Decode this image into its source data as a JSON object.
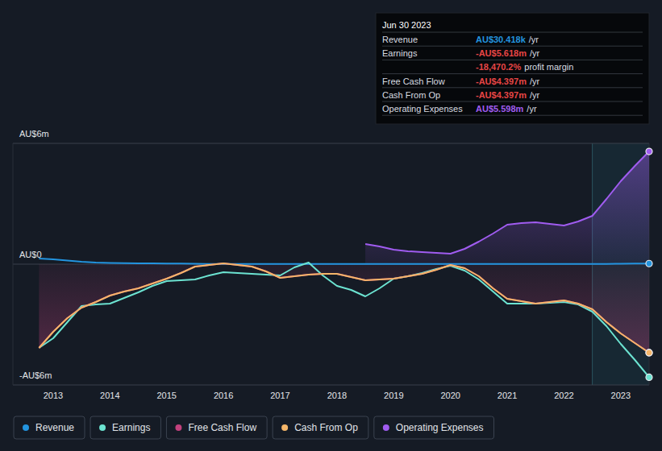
{
  "chart_data": {
    "type": "line",
    "x": [
      2012.75,
      2013,
      2013.25,
      2013.5,
      2013.75,
      2014,
      2014.25,
      2014.5,
      2014.75,
      2015,
      2015.25,
      2015.5,
      2015.75,
      2016,
      2016.25,
      2016.5,
      2016.75,
      2017,
      2017.25,
      2017.5,
      2017.75,
      2018,
      2018.25,
      2018.5,
      2018.75,
      2019,
      2019.25,
      2019.5,
      2019.75,
      2020,
      2020.25,
      2020.5,
      2020.75,
      2021,
      2021.25,
      2021.5,
      2021.75,
      2022,
      2022.25,
      2022.5,
      2022.75,
      2023,
      2023.25,
      2023.5
    ],
    "xlim": [
      2012.29,
      2023.5
    ],
    "xticks": [
      2013,
      2014,
      2015,
      2016,
      2017,
      2018,
      2019,
      2020,
      2021,
      2022,
      2023
    ],
    "ylim": [
      -6,
      6
    ],
    "yticks": [
      {
        "value": -6,
        "label": "-AU$6m"
      },
      {
        "value": 0,
        "label": "AU$0"
      },
      {
        "value": 6,
        "label": "AU$6m"
      }
    ],
    "grid": true,
    "legend": "bottom-left",
    "marker": "circle",
    "series": [
      {
        "name": "Revenue",
        "color": "#2394df",
        "type": "line",
        "values": [
          0.28,
          0.24,
          0.18,
          0.12,
          0.08,
          0.06,
          0.05,
          0.04,
          0.04,
          0.03,
          0.03,
          0.02,
          0.01,
          0.01,
          0.01,
          0.01,
          0.01,
          0.01,
          0.01,
          0.01,
          0.01,
          0.01,
          0.01,
          0.01,
          0.01,
          0.01,
          0.01,
          0.01,
          0.01,
          0.01,
          0.01,
          0.01,
          0.01,
          0.01,
          0.01,
          0.01,
          0.01,
          0.01,
          0.01,
          0.01,
          0.01,
          0.02,
          0.03,
          0.030418
        ]
      },
      {
        "name": "Earnings",
        "color": "#6ce3d1",
        "type": "line",
        "values": [
          -4.16,
          -3.68,
          -2.88,
          -2.08,
          -2.0,
          -1.96,
          -1.68,
          -1.4,
          -1.08,
          -0.84,
          -0.8,
          -0.76,
          -0.56,
          -0.4,
          -0.44,
          -0.48,
          -0.52,
          -0.56,
          -0.16,
          0.08,
          -0.56,
          -1.08,
          -1.28,
          -1.6,
          -1.2,
          -0.72,
          -0.6,
          -0.44,
          -0.24,
          -0.08,
          -0.32,
          -0.76,
          -1.36,
          -1.96,
          -1.96,
          -1.96,
          -1.92,
          -1.88,
          -2.0,
          -2.36,
          -3.08,
          -3.96,
          -4.76,
          -5.618
        ]
      },
      {
        "name": "Free Cash Flow",
        "color": "#c2417d",
        "type": "area",
        "values": [
          -4.16,
          -3.36,
          -2.68,
          -2.16,
          -1.88,
          -1.56,
          -1.36,
          -1.2,
          -0.96,
          -0.72,
          -0.44,
          -0.12,
          -0.04,
          0.04,
          -0.04,
          -0.12,
          -0.36,
          -0.68,
          -0.6,
          -0.52,
          -0.48,
          -0.48,
          -0.64,
          -0.8,
          -0.76,
          -0.72,
          -0.6,
          -0.48,
          -0.28,
          -0.04,
          -0.2,
          -0.6,
          -1.2,
          -1.72,
          -1.84,
          -1.96,
          -1.88,
          -1.8,
          -1.96,
          -2.24,
          -2.88,
          -3.44,
          -3.92,
          -4.397
        ]
      },
      {
        "name": "Cash From Op",
        "color": "#f5b669",
        "type": "line",
        "values": [
          -4.16,
          -3.36,
          -2.68,
          -2.16,
          -1.88,
          -1.56,
          -1.36,
          -1.2,
          -0.96,
          -0.72,
          -0.44,
          -0.12,
          -0.04,
          0.04,
          -0.04,
          -0.12,
          -0.36,
          -0.68,
          -0.6,
          -0.52,
          -0.48,
          -0.48,
          -0.64,
          -0.8,
          -0.76,
          -0.72,
          -0.6,
          -0.48,
          -0.28,
          -0.04,
          -0.2,
          -0.6,
          -1.2,
          -1.72,
          -1.84,
          -1.96,
          -1.88,
          -1.8,
          -1.96,
          -2.24,
          -2.88,
          -3.44,
          -3.92,
          -4.397
        ]
      },
      {
        "name": "Operating Expenses",
        "color": "#a05cf0",
        "type": "area",
        "values": [
          null,
          null,
          null,
          null,
          null,
          null,
          null,
          null,
          null,
          null,
          null,
          null,
          null,
          null,
          null,
          null,
          null,
          null,
          null,
          null,
          null,
          null,
          null,
          1.0,
          0.88,
          0.72,
          0.64,
          0.6,
          0.56,
          0.52,
          0.76,
          1.12,
          1.52,
          1.96,
          2.04,
          2.08,
          2.0,
          1.92,
          2.12,
          2.4,
          3.24,
          4.12,
          4.88,
          5.598
        ]
      }
    ],
    "tooltip": {
      "title": "Jun 30 2023",
      "rows": [
        {
          "label": "Revenue",
          "value": "AU$30.418k",
          "unit": "/yr",
          "color": "#2394df"
        },
        {
          "label": "Earnings",
          "value": "-AU$5.618m",
          "unit": "/yr",
          "color": "#e64545"
        },
        {
          "value": "-18,470.2%",
          "unit": "profit margin",
          "color": "#e64545"
        },
        {
          "label": "Free Cash Flow",
          "value": "-AU$4.397m",
          "unit": "/yr",
          "color": "#e64545"
        },
        {
          "label": "Cash From Op",
          "value": "-AU$4.397m",
          "unit": "/yr",
          "color": "#e64545"
        },
        {
          "label": "Operating Expenses",
          "value": "AU$5.598m",
          "unit": "/yr",
          "color": "#a05cf0"
        }
      ]
    }
  }
}
